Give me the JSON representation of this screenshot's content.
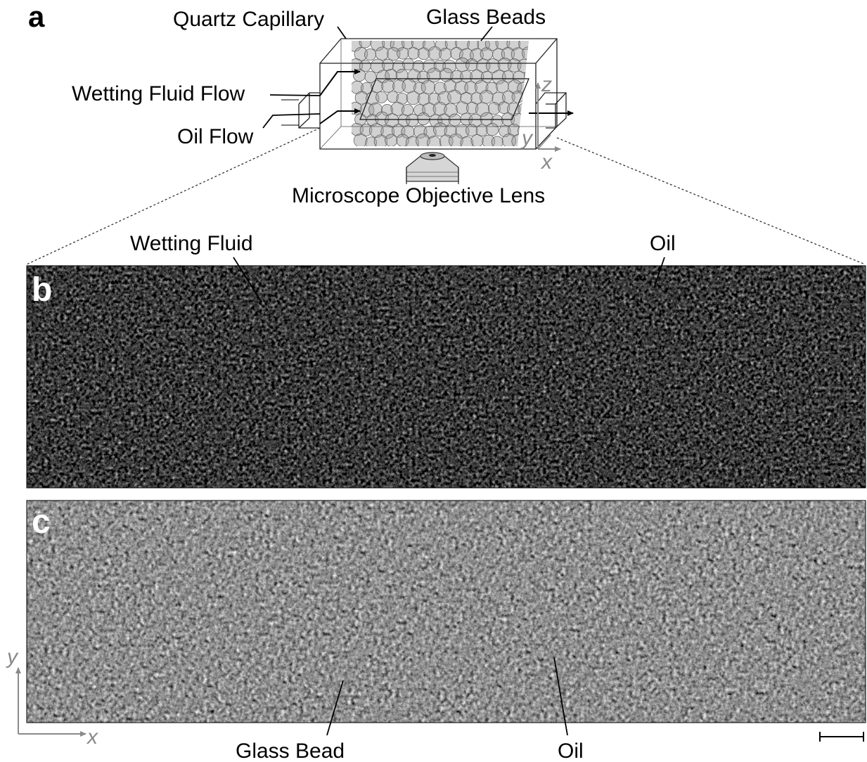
{
  "panel_a": {
    "letter": "a",
    "labels": {
      "quartz_capillary": "Quartz Capillary",
      "glass_beads": "Glass Beads",
      "wetting_fluid_flow": "Wetting Fluid Flow",
      "oil_flow": "Oil Flow",
      "objective_lens": "Microscope Objective Lens"
    },
    "axes": {
      "z": "z",
      "y": "y",
      "x": "x"
    }
  },
  "panel_b": {
    "letter": "b",
    "labels": {
      "wetting_fluid": "Wetting Fluid",
      "oil": "Oil"
    }
  },
  "panel_c": {
    "letter": "c",
    "labels": {
      "glass_bead": "Glass Bead",
      "oil": "Oil"
    },
    "axes": {
      "y": "y",
      "x": "x"
    }
  },
  "colors": {
    "background": "#ffffff",
    "micrograph_dark": "#050505",
    "bead_gray": "#9a9a9a",
    "axis_gray": "#8a8a8a"
  }
}
